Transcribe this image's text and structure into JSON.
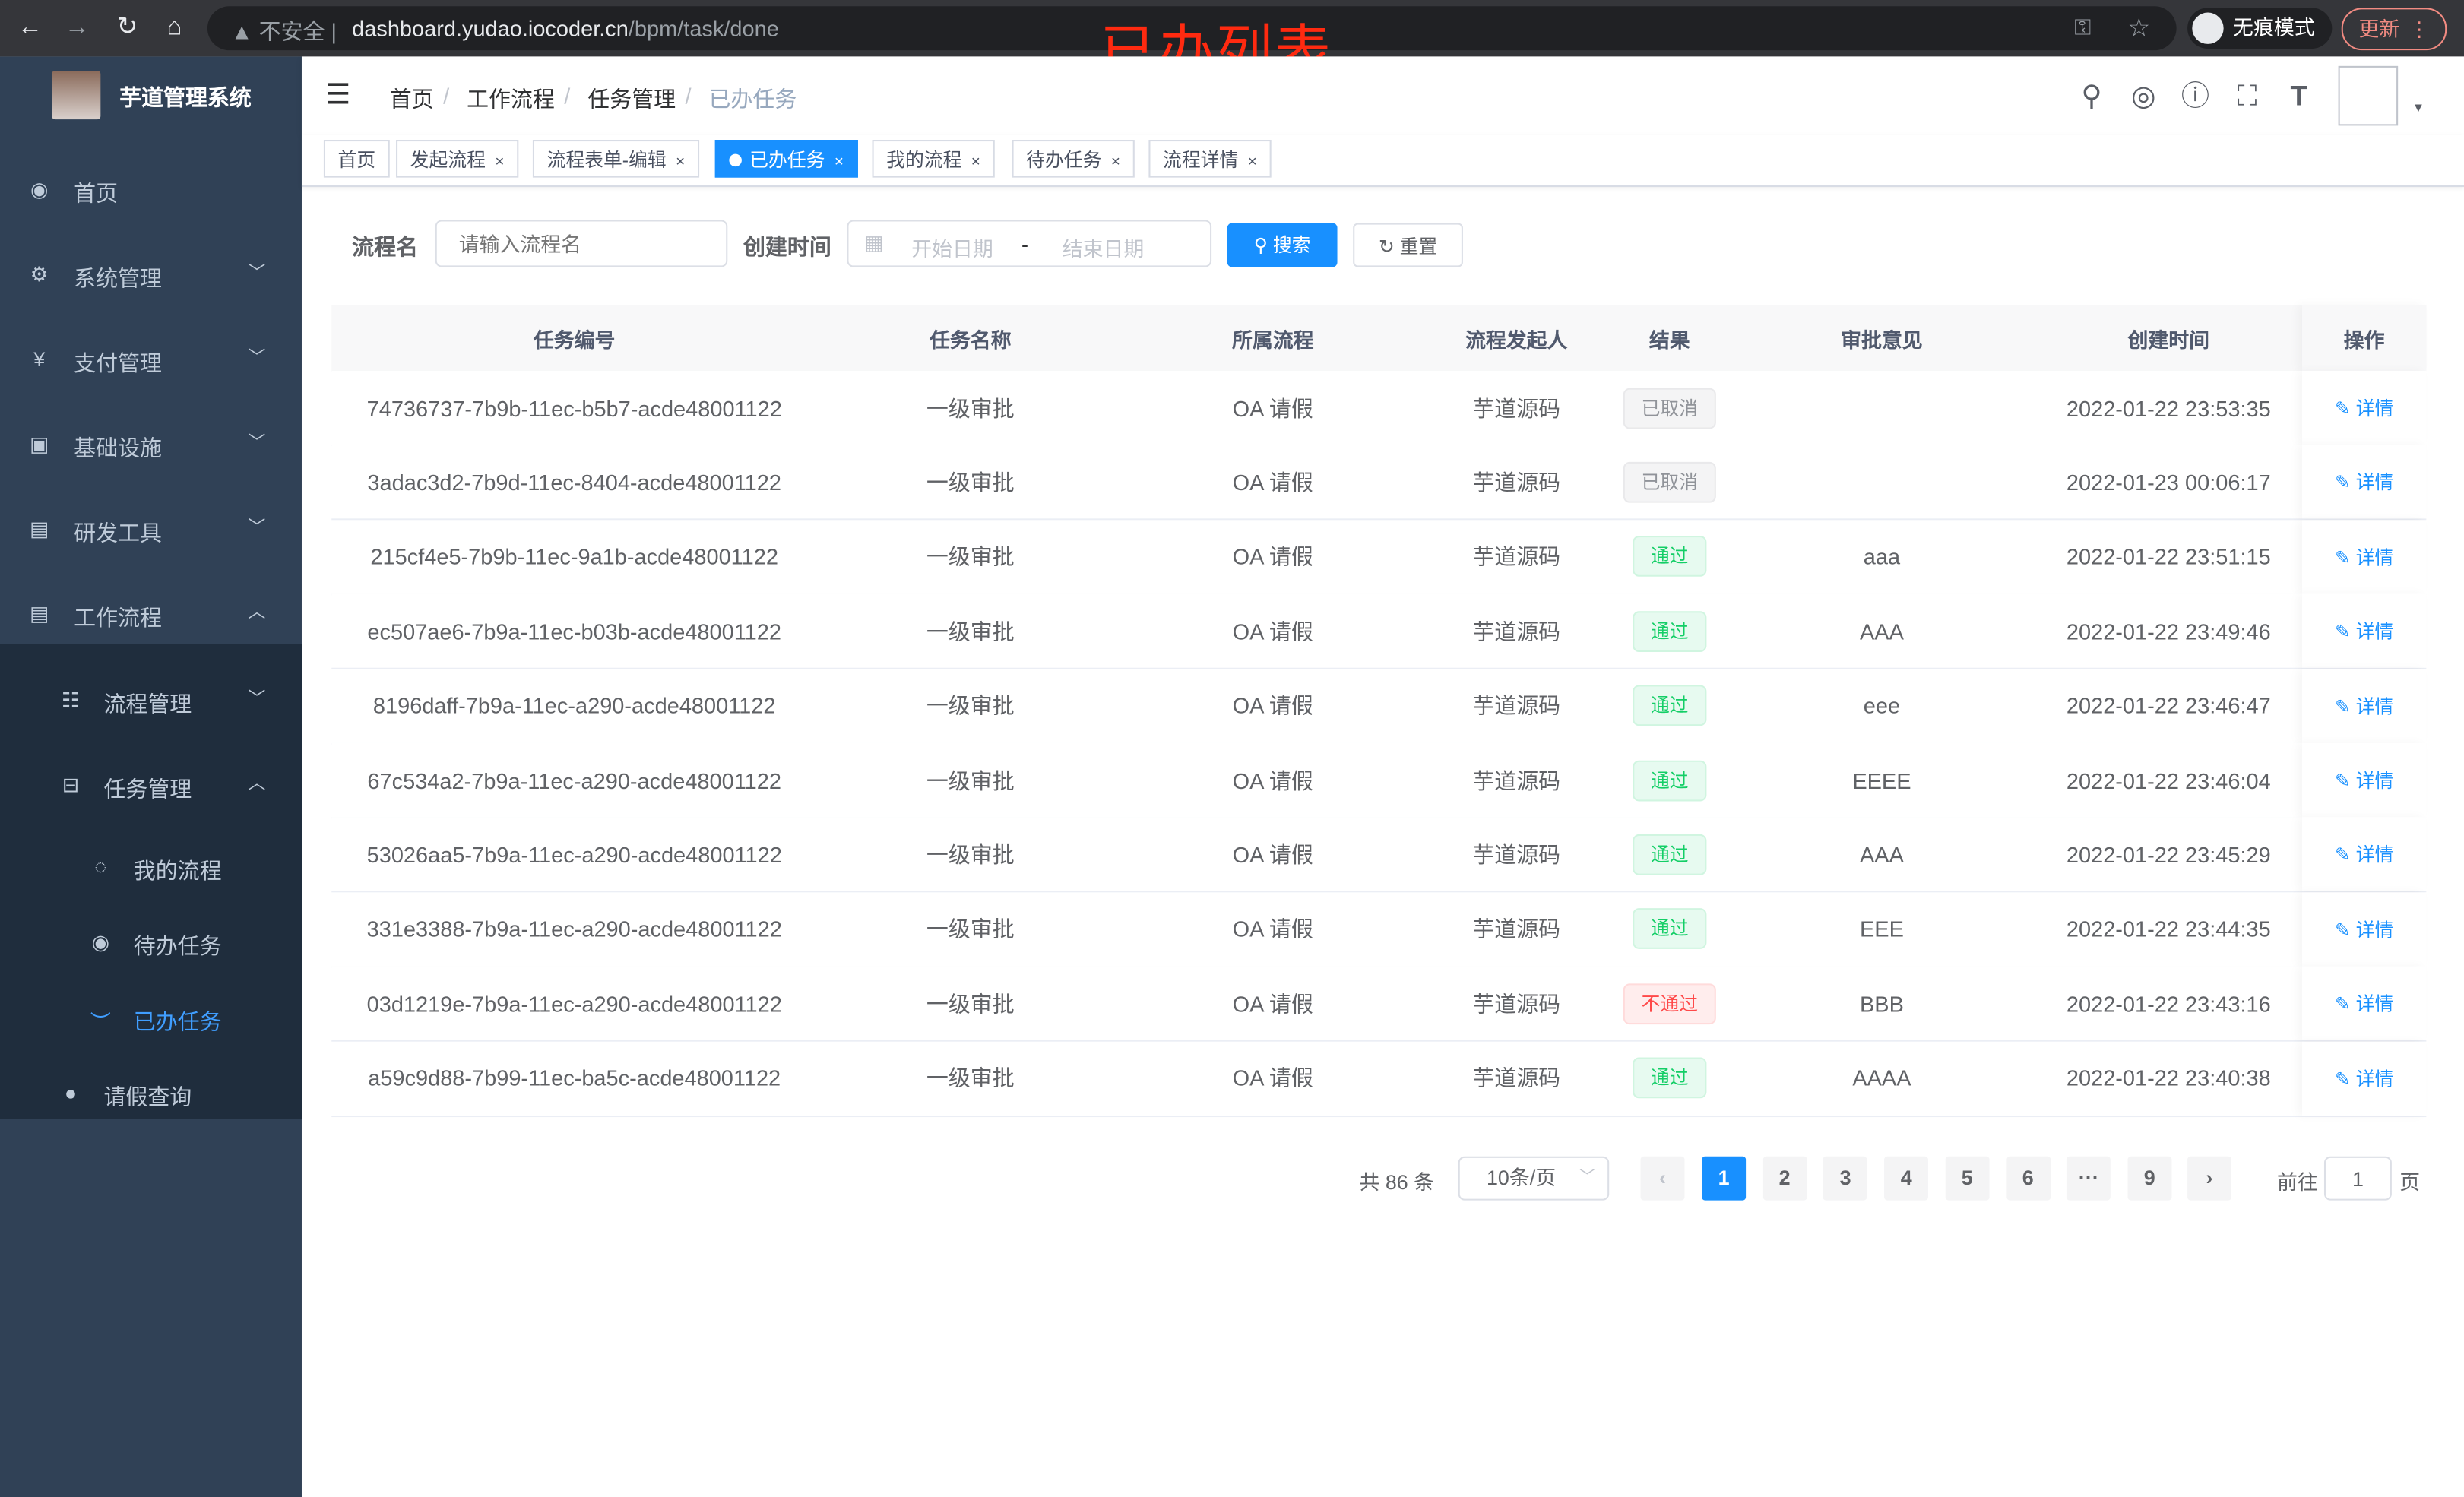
{
  "browser": {
    "insecure_label": "不安全",
    "url_host": "dashboard.yudao.iocoder.cn",
    "url_path": "/bpm/task/done",
    "incognito_label": "无痕模式",
    "update_label": "更新"
  },
  "annotation": "已办列表",
  "sidebar": {
    "title": "芋道管理系统",
    "items": [
      {
        "label": "首页",
        "icon": "dashboard-icon"
      },
      {
        "label": "系统管理",
        "icon": "gear-icon"
      },
      {
        "label": "支付管理",
        "icon": "yen-icon"
      },
      {
        "label": "基础设施",
        "icon": "monitor-icon"
      },
      {
        "label": "研发工具",
        "icon": "toolbox-icon"
      },
      {
        "label": "工作流程",
        "icon": "toolbox-icon"
      }
    ],
    "sub_items": [
      {
        "label": "流程管理",
        "icon": "list-icon"
      },
      {
        "label": "任务管理",
        "icon": "tree-icon"
      },
      {
        "label": "我的流程",
        "icon": "user-circle-icon"
      },
      {
        "label": "待办任务",
        "icon": "eye-icon"
      },
      {
        "label": "已办任务",
        "icon": "eye-closed-icon"
      },
      {
        "label": "请假查询",
        "icon": "user-icon"
      }
    ],
    "active_color": "#409eff"
  },
  "breadcrumb": [
    "首页",
    "工作流程",
    "任务管理",
    "已办任务"
  ],
  "tags": [
    {
      "label": "首页",
      "closable": false
    },
    {
      "label": "发起流程",
      "closable": true
    },
    {
      "label": "流程表单-编辑",
      "closable": true
    },
    {
      "label": "已办任务",
      "closable": true,
      "active": true
    },
    {
      "label": "我的流程",
      "closable": true
    },
    {
      "label": "待办任务",
      "closable": true
    },
    {
      "label": "流程详情",
      "closable": true
    }
  ],
  "filters": {
    "name_label": "流程名",
    "name_placeholder": "请输入流程名",
    "time_label": "创建时间",
    "start_placeholder": "开始日期",
    "range_sep": "-",
    "end_placeholder": "结束日期",
    "search_label": "搜索",
    "reset_label": "重置"
  },
  "table": {
    "headers": [
      "任务编号",
      "任务名称",
      "所属流程",
      "流程发起人",
      "结果",
      "审批意见",
      "创建时间",
      "操作"
    ],
    "rows": [
      {
        "id": "74736737-7b9b-11ec-b5b7-acde48001122",
        "name": "一级审批",
        "process": "OA 请假",
        "starter": "芋道源码",
        "result": "已取消",
        "result_type": "cancel",
        "comment": "",
        "time": "2022-01-22 23:53:35"
      },
      {
        "id": "3adac3d2-7b9d-11ec-8404-acde48001122",
        "name": "一级审批",
        "process": "OA 请假",
        "starter": "芋道源码",
        "result": "已取消",
        "result_type": "cancel",
        "comment": "",
        "time": "2022-01-23 00:06:17"
      },
      {
        "id": "215cf4e5-7b9b-11ec-9a1b-acde48001122",
        "name": "一级审批",
        "process": "OA 请假",
        "starter": "芋道源码",
        "result": "通过",
        "result_type": "pass",
        "comment": "aaa",
        "time": "2022-01-22 23:51:15"
      },
      {
        "id": "ec507ae6-7b9a-11ec-b03b-acde48001122",
        "name": "一级审批",
        "process": "OA 请假",
        "starter": "芋道源码",
        "result": "通过",
        "result_type": "pass",
        "comment": "AAA",
        "time": "2022-01-22 23:49:46"
      },
      {
        "id": "8196daff-7b9a-11ec-a290-acde48001122",
        "name": "一级审批",
        "process": "OA 请假",
        "starter": "芋道源码",
        "result": "通过",
        "result_type": "pass",
        "comment": "eee",
        "time": "2022-01-22 23:46:47"
      },
      {
        "id": "67c534a2-7b9a-11ec-a290-acde48001122",
        "name": "一级审批",
        "process": "OA 请假",
        "starter": "芋道源码",
        "result": "通过",
        "result_type": "pass",
        "comment": "EEEE",
        "time": "2022-01-22 23:46:04"
      },
      {
        "id": "53026aa5-7b9a-11ec-a290-acde48001122",
        "name": "一级审批",
        "process": "OA 请假",
        "starter": "芋道源码",
        "result": "通过",
        "result_type": "pass",
        "comment": "AAA",
        "time": "2022-01-22 23:45:29"
      },
      {
        "id": "331e3388-7b9a-11ec-a290-acde48001122",
        "name": "一级审批",
        "process": "OA 请假",
        "starter": "芋道源码",
        "result": "通过",
        "result_type": "pass",
        "comment": "EEE",
        "time": "2022-01-22 23:44:35"
      },
      {
        "id": "03d1219e-7b9a-11ec-a290-acde48001122",
        "name": "一级审批",
        "process": "OA 请假",
        "starter": "芋道源码",
        "result": "不通过",
        "result_type": "fail",
        "comment": "BBB",
        "time": "2022-01-22 23:43:16"
      },
      {
        "id": "a59c9d88-7b99-11ec-ba5c-acde48001122",
        "name": "一级审批",
        "process": "OA 请假",
        "starter": "芋道源码",
        "result": "通过",
        "result_type": "pass",
        "comment": "AAAA",
        "time": "2022-01-22 23:40:38"
      }
    ],
    "detail_label": "详情"
  },
  "pagination": {
    "total_label": "共 86 条",
    "page_size": "10条/页",
    "pages": [
      "1",
      "2",
      "3",
      "4",
      "5",
      "6",
      "···",
      "9"
    ],
    "current": "1",
    "goto_label": "前往",
    "goto_value": "1",
    "page_suffix": "页"
  }
}
